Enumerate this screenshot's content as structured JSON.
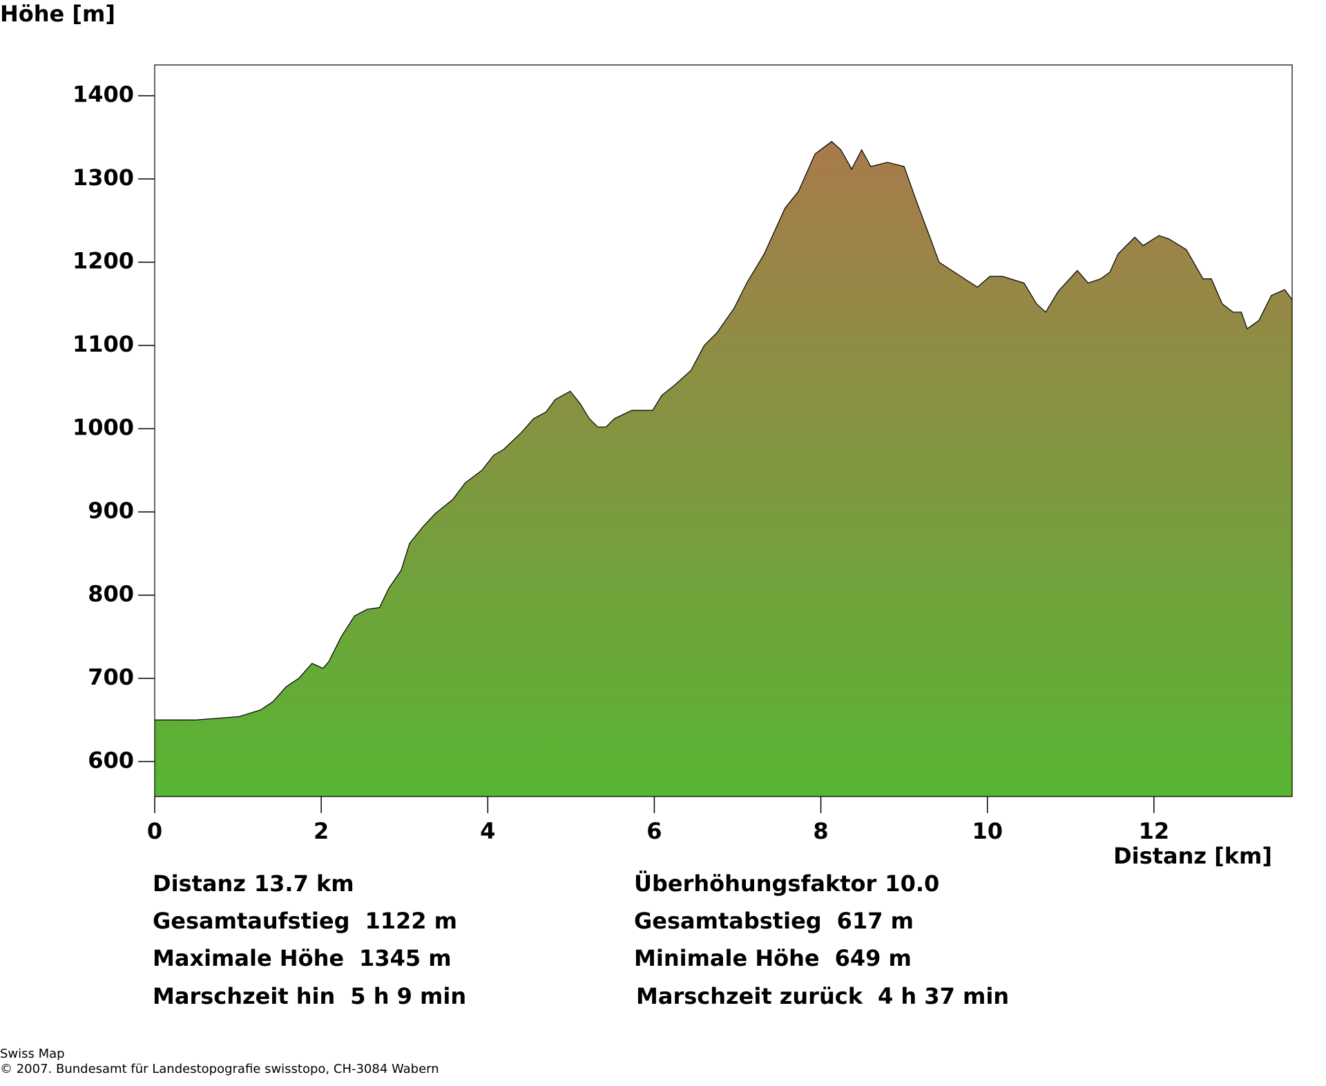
{
  "chart_data": {
    "type": "area",
    "y_label": "Höhe [m]",
    "x_label": "Distanz [km]",
    "x": [
      0,
      0.5,
      1.01,
      1.27,
      1.42,
      1.58,
      1.73,
      1.89,
      2.02,
      2.09,
      2.24,
      2.4,
      2.55,
      2.7,
      2.81,
      2.96,
      3.06,
      3.22,
      3.37,
      3.58,
      3.73,
      3.93,
      4.07,
      4.19,
      4.4,
      4.55,
      4.7,
      4.81,
      4.99,
      5.11,
      5.22,
      5.32,
      5.42,
      5.52,
      5.73,
      5.98,
      6.09,
      6.24,
      6.44,
      6.6,
      6.75,
      6.96,
      7.11,
      7.32,
      7.57,
      7.73,
      7.93,
      8.13,
      8.24,
      8.37,
      8.49,
      8.6,
      8.8,
      9.0,
      9.16,
      9.31,
      9.42,
      9.88,
      10.03,
      10.18,
      10.44,
      10.59,
      10.7,
      10.85,
      11.08,
      11.21,
      11.36,
      11.47,
      11.57,
      11.77,
      11.87,
      12.06,
      12.18,
      12.39,
      12.59,
      12.69,
      12.82,
      12.95,
      13.05,
      13.12,
      13.26,
      13.41,
      13.57,
      13.66
    ],
    "values": [
      650,
      650,
      654,
      662,
      672,
      690,
      700,
      718,
      712,
      720,
      750,
      775,
      783,
      785,
      808,
      830,
      862,
      882,
      898,
      915,
      935,
      950,
      968,
      975,
      995,
      1012,
      1020,
      1035,
      1045,
      1030,
      1012,
      1002,
      1002,
      1012,
      1022,
      1022,
      1040,
      1052,
      1070,
      1100,
      1115,
      1145,
      1175,
      1210,
      1265,
      1285,
      1330,
      1345,
      1335,
      1312,
      1335,
      1315,
      1320,
      1315,
      1270,
      1230,
      1200,
      1170,
      1183,
      1183,
      1175,
      1150,
      1140,
      1165,
      1190,
      1175,
      1180,
      1188,
      1210,
      1230,
      1220,
      1232,
      1228,
      1215,
      1180,
      1180,
      1150,
      1140,
      1140,
      1120,
      1130,
      1160,
      1167,
      1155
    ],
    "gradient": [
      "#a87a4b",
      "#57b533"
    ],
    "line_color": "#000000",
    "xlim": [
      0,
      13.66
    ],
    "ylim": [
      558,
      1437
    ],
    "xticks": [
      0,
      2,
      4,
      6,
      8,
      10,
      12
    ],
    "yticks": [
      600,
      700,
      800,
      900,
      1000,
      1100,
      1200,
      1300,
      1400
    ]
  },
  "stats": [
    [
      {
        "label": "Distanz",
        "value": "13.7 km"
      },
      {
        "label": "Überhöhungsfaktor",
        "value": "10.0"
      }
    ],
    [
      {
        "label": "Gesamtaufstieg",
        "value": "1122 m"
      },
      {
        "label": "Gesamtabstieg",
        "value": "617 m"
      }
    ],
    [
      {
        "label": "Maximale Höhe",
        "value": "1345 m"
      },
      {
        "label": "Minimale Höhe",
        "value": "649 m"
      }
    ],
    [
      {
        "label": "Marschzeit hin",
        "value": "5 h 9 min"
      },
      {
        "label": "Marschzeit zurück",
        "value": "4 h 37 min"
      }
    ]
  ],
  "footer": [
    "Swiss Map",
    "© 2007. Bundesamt für Landestopografie swisstopo, CH-3084 Wabern"
  ]
}
